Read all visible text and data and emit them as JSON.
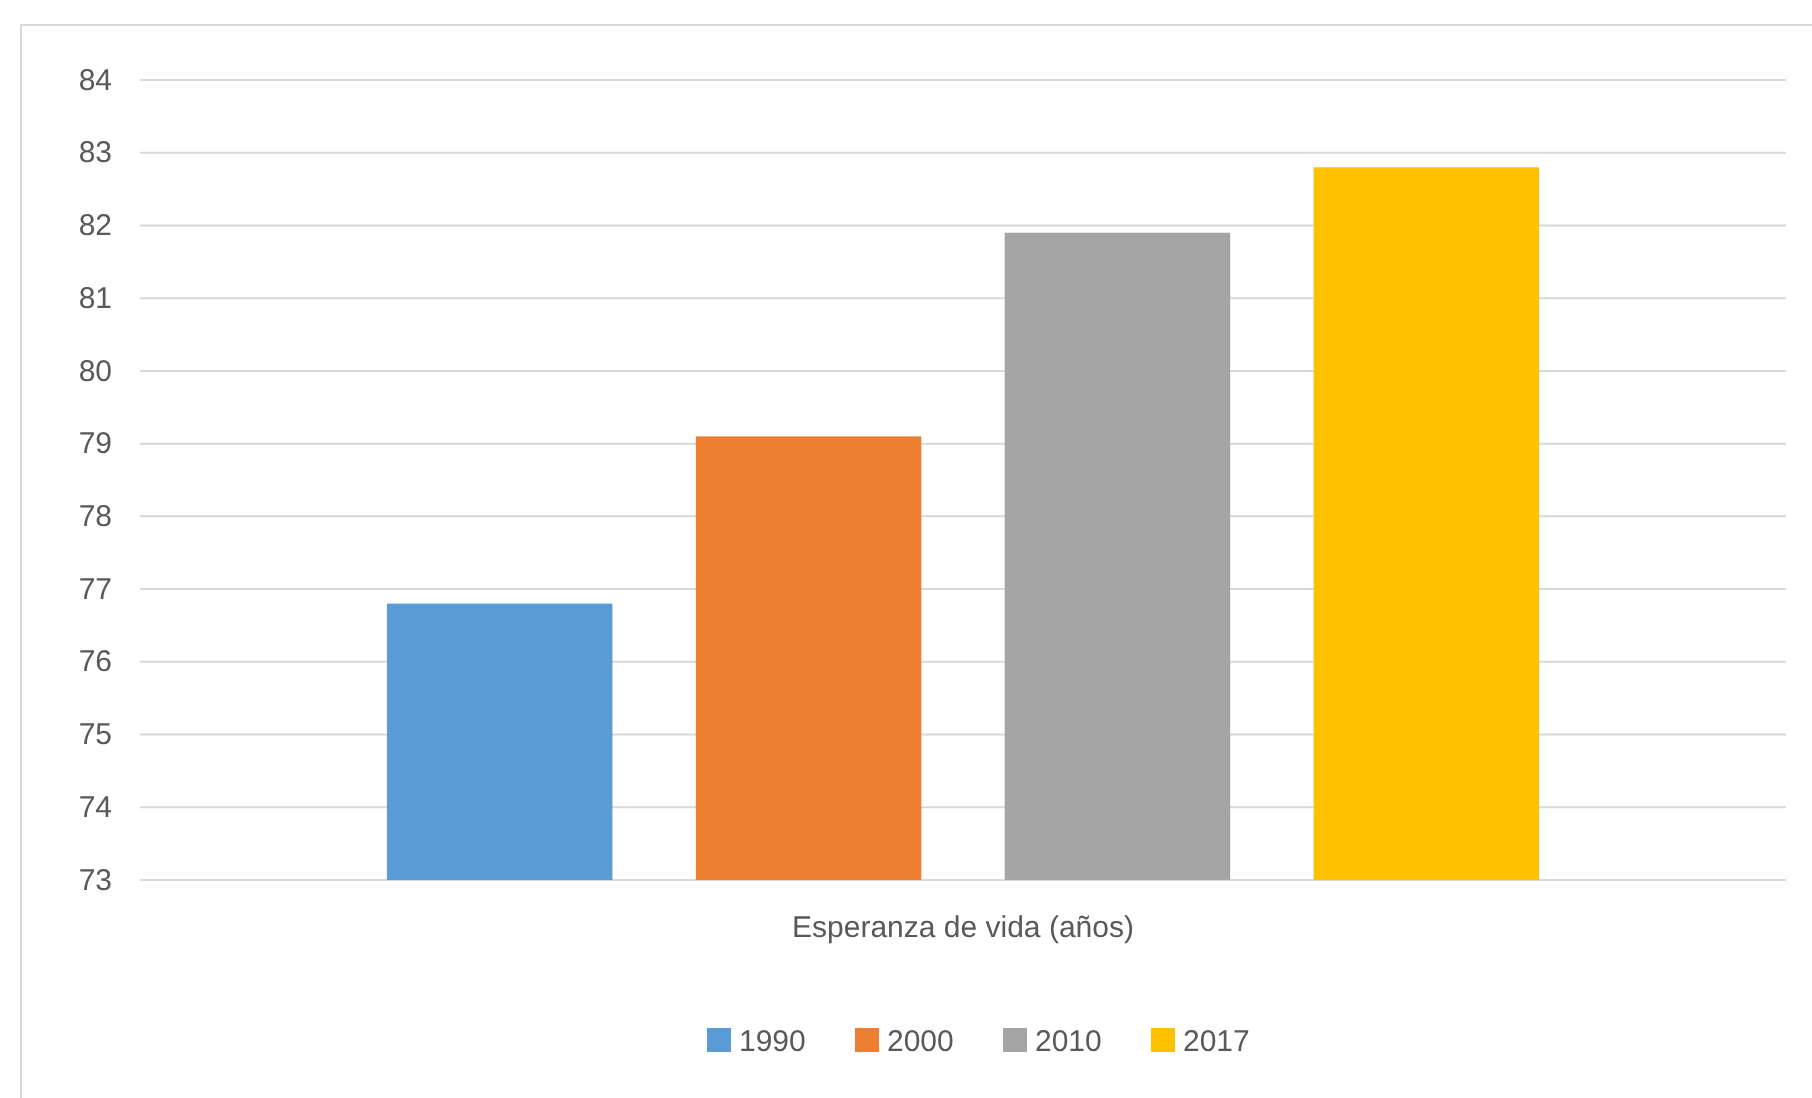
{
  "chart_data": {
    "type": "bar",
    "categories": [
      "Esperanza de vida (años)"
    ],
    "series": [
      {
        "name": "1990",
        "color": "#5b9bd5",
        "values": [
          76.8
        ]
      },
      {
        "name": "2000",
        "color": "#ed7d31",
        "values": [
          79.1
        ]
      },
      {
        "name": "2010",
        "color": "#a5a5a5",
        "values": [
          81.9
        ]
      },
      {
        "name": "2017",
        "color": "#ffc000",
        "values": [
          82.8
        ]
      }
    ],
    "ylim": [
      73,
      84
    ],
    "yticks": [
      73,
      74,
      75,
      76,
      77,
      78,
      79,
      80,
      81,
      82,
      83,
      84
    ],
    "grid": "y",
    "legend": "bottom"
  }
}
